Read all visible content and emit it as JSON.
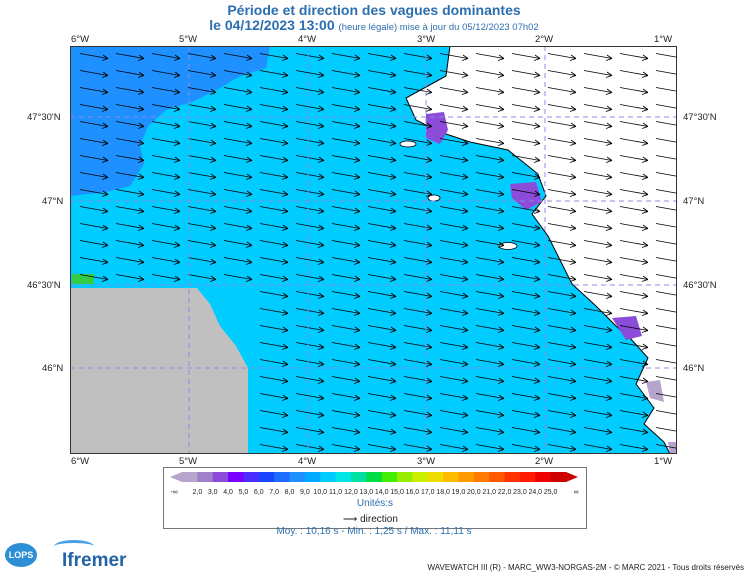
{
  "header": {
    "title": "Période et direction des vagues dominantes",
    "subtitle_main": "le 04/12/2023 13:00",
    "subtitle_small": "(heure légale) mise à jour du 05/12/2023 07h02"
  },
  "map": {
    "lon_labels": [
      "6°W",
      "5°W",
      "4°W",
      "3°W",
      "2°W",
      "1°W"
    ],
    "lat_labels": [
      "47°30'N",
      "47°N",
      "46°30'N",
      "46°N"
    ],
    "colors": {
      "sea": "#00ccff",
      "deep_band": "#1e90ff",
      "land": "#ffffff",
      "nodata": "#c0c0c0",
      "grid": "#8c8ce6"
    }
  },
  "legend": {
    "tick_labels": [
      "2,0",
      "3,0",
      "4,0",
      "5,0",
      "6,0",
      "7,0",
      "8,0",
      "9,0",
      "10,0",
      "11,0",
      "12,0",
      "13,0",
      "14,0",
      "15,0",
      "16,0",
      "17,0",
      "18,0",
      "19,0",
      "20,0",
      "21,0",
      "22,0",
      "23,0",
      "24,0",
      "25,0"
    ],
    "left_end": "-∞",
    "right_end": "∞",
    "unit": "Unités",
    "arrow_label": "direction",
    "colors": [
      "#b7a4cc",
      "#a080c8",
      "#8a4cd9",
      "#7a00ff",
      "#4a2cff",
      "#1a44ff",
      "#1e6cff",
      "#1e90ff",
      "#00aaff",
      "#00ccff",
      "#00e5e5",
      "#00e0a0",
      "#00dd44",
      "#44ee00",
      "#99ee00",
      "#ccee00",
      "#eedd00",
      "#ffbb00",
      "#ff9900",
      "#ff7a00",
      "#ff5a00",
      "#ff3300",
      "#ff1a00",
      "#ee0000",
      "#cc0000"
    ]
  },
  "stats": {
    "text": "Moy. : 10,16 s   -   Min. : 1,25 s / Max. : 11,11 s"
  },
  "logos": {
    "lops": "LOPS",
    "ifremer": "Ifremer"
  },
  "footer": {
    "text": "WAVEWATCH III (R) - MARC_WW3-NORGAS-2M - © MARC 2021 - Tous droits réservés"
  }
}
